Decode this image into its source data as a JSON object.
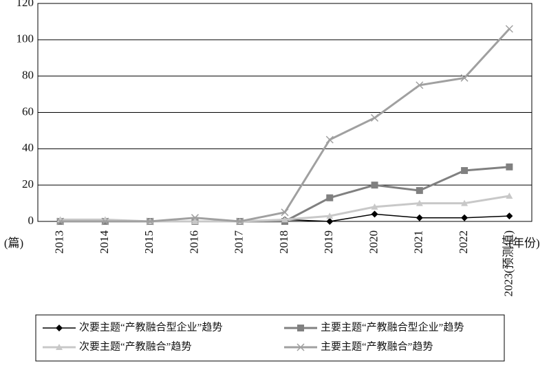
{
  "chart_data": {
    "type": "line",
    "y_unit": "(篇)",
    "x_unit": "(年份)",
    "categories": [
      "2013",
      "2014",
      "2015",
      "2016",
      "2017",
      "2018",
      "2019",
      "2020",
      "2021",
      "2022",
      "2023(预测值)"
    ],
    "series": [
      {
        "name": "次要主题“产教融合型企业”趋势",
        "color": "#000000",
        "marker": "diamond",
        "values": [
          0,
          0,
          0,
          0,
          0,
          1,
          0,
          4,
          2,
          2,
          3
        ]
      },
      {
        "name": "主要主题“产教融合型企业”趋势",
        "color": "#808080",
        "marker": "square",
        "values": [
          0,
          0,
          0,
          0,
          0,
          0,
          13,
          20,
          17,
          28,
          30
        ]
      },
      {
        "name": "次要主题“产教融合”趋势",
        "color": "#c8c8c8",
        "marker": "triangle",
        "values": [
          1,
          1,
          0,
          0,
          0,
          1,
          3,
          8,
          10,
          10,
          14
        ]
      },
      {
        "name": "主要主题“产教融合”趋势",
        "color": "#a0a0a0",
        "marker": "x",
        "values": [
          0,
          0,
          0,
          2,
          0,
          5,
          45,
          57,
          75,
          79,
          106
        ]
      }
    ],
    "ylim": [
      0,
      120
    ],
    "yticks": [
      0,
      20,
      40,
      60,
      80,
      100,
      120
    ],
    "grid": true
  }
}
